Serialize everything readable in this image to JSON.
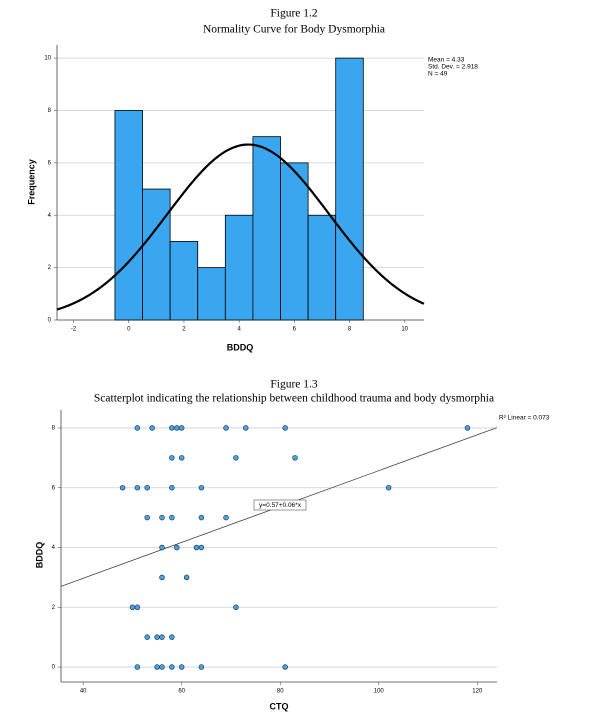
{
  "chart_data": [
    {
      "type": "histogram",
      "figure_label": "Figure 1.2",
      "title": "Normality Curve for Body Dysmorphia",
      "x_label": "BDDQ",
      "y_label": "Frequency",
      "bins": [
        -0.5,
        0.5,
        1.5,
        2.5,
        3.5,
        4.5,
        5.5,
        6.5,
        7.5,
        8.5
      ],
      "values": [
        8,
        5,
        3,
        2,
        4,
        7,
        6,
        4,
        10
      ],
      "color": "#3aa6ef",
      "xlim": [
        -2.6,
        10.7
      ],
      "xticks": [
        -2,
        0,
        2,
        4,
        6,
        8,
        10
      ],
      "ylim": [
        0,
        10.5
      ],
      "yticks": [
        0,
        2,
        4,
        6,
        8,
        10
      ],
      "grid": true,
      "normal_curve": {
        "mean": {
          "value": 4.33,
          "label": "Mean = 4.33"
        },
        "sd": {
          "value": 2.918,
          "label": "Std. Dev. = 2.918"
        },
        "n": {
          "value": 49,
          "label": "N = 49"
        }
      }
    },
    {
      "type": "scatter",
      "figure_label": "Figure 1.3",
      "title": "Scatterplot indicating the relationship between childhood trauma and body dysmorphia",
      "x_label": "CTQ",
      "y_label": "BDDQ",
      "x": [
        51,
        54,
        58,
        59,
        60,
        69,
        73,
        81,
        118,
        58,
        60,
        71,
        83,
        48,
        51,
        53,
        58,
        64,
        102,
        53,
        56,
        58,
        64,
        69,
        56,
        59,
        63,
        64,
        56,
        61,
        50,
        51,
        71,
        53,
        55,
        56,
        58,
        51,
        55,
        56,
        58,
        60,
        64,
        81
      ],
      "values": [
        8,
        8,
        8,
        8,
        8,
        8,
        8,
        8,
        8,
        7,
        7,
        7,
        7,
        6,
        6,
        6,
        6,
        6,
        6,
        5,
        5,
        5,
        5,
        5,
        4,
        4,
        4,
        4,
        3,
        3,
        2,
        2,
        2,
        1,
        1,
        1,
        1,
        0,
        0,
        0,
        0,
        0,
        0,
        0
      ],
      "color": "#4aa3de",
      "xlim": [
        35.5,
        124
      ],
      "xticks": [
        40,
        60,
        80,
        100,
        120
      ],
      "ylim": [
        -0.5,
        8.6
      ],
      "yticks": [
        0,
        2,
        4,
        6,
        8
      ],
      "grid": true,
      "fit_line": {
        "intercept": 0.57,
        "slope": 0.06,
        "label": "y=0.57+0.06*x"
      },
      "r2": {
        "value": 0.073,
        "label": "R² Linear = 0.073"
      }
    }
  ]
}
